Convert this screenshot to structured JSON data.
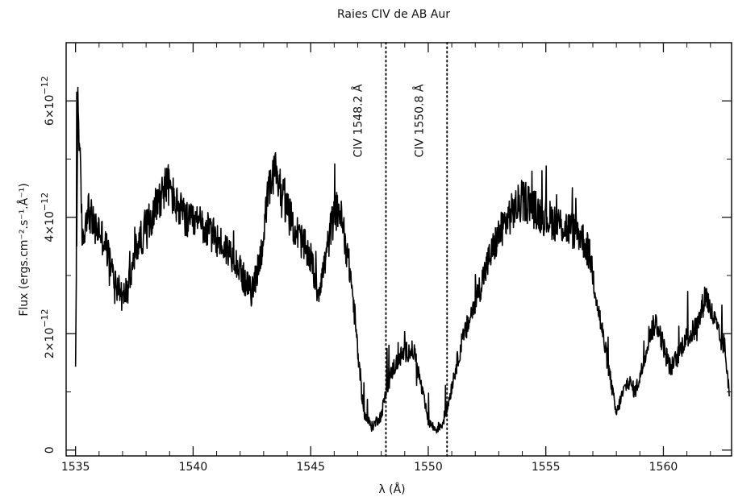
{
  "chart_data": {
    "type": "line",
    "title": "Raies CIV de AB Aur",
    "xlabel": "λ (Å)",
    "ylabel": "Flux (ergs.cm⁻².s⁻¹.Å⁻¹)",
    "xlim": [
      1534.6,
      1562.9
    ],
    "ylim": [
      -1e-13,
      7e-12
    ],
    "x_ticks": [
      1535,
      1540,
      1545,
      1550,
      1555,
      1560
    ],
    "x_tick_labels": [
      "1535",
      "1540",
      "1545",
      "1550",
      "1555",
      "1560"
    ],
    "y_ticks": [
      0,
      2e-12,
      4e-12,
      6e-12
    ],
    "y_tick_labels": [
      {
        "base": "0",
        "exp": ""
      },
      {
        "base": "2×10",
        "exp": "−12"
      },
      {
        "base": "4×10",
        "exp": "−12"
      },
      {
        "base": "6×10",
        "exp": "−12"
      }
    ],
    "grid": false,
    "series": [
      {
        "units": "ergs.cm-2.s-1.A-1 (x 1e-12)",
        "x": [
          1535.0,
          1535.1,
          1535.3,
          1535.5,
          1535.8,
          1536.0,
          1536.3,
          1536.6,
          1536.8,
          1537.0,
          1537.3,
          1537.6,
          1538.0,
          1538.5,
          1538.9,
          1539.3,
          1539.8,
          1540.3,
          1540.8,
          1541.3,
          1541.8,
          1542.2,
          1542.5,
          1542.9,
          1543.2,
          1543.5,
          1543.8,
          1544.2,
          1544.6,
          1545.0,
          1545.3,
          1545.6,
          1545.9,
          1546.2,
          1546.5,
          1546.7,
          1546.9,
          1547.1,
          1547.3,
          1547.6,
          1548.0,
          1548.2,
          1548.5,
          1548.8,
          1549.1,
          1549.4,
          1549.7,
          1550.0,
          1550.3,
          1550.6,
          1550.8,
          1551.1,
          1551.4,
          1551.8,
          1552.2,
          1552.6,
          1553.0,
          1553.4,
          1553.8,
          1554.2,
          1554.6,
          1555.0,
          1555.5,
          1556.0,
          1556.5,
          1556.9,
          1557.2,
          1557.5,
          1557.8,
          1558.0,
          1558.2,
          1558.5,
          1558.8,
          1559.1,
          1559.4,
          1559.7,
          1560.0,
          1560.3,
          1560.6,
          1560.9,
          1561.2,
          1561.5,
          1561.8,
          1562.0,
          1562.2,
          1562.4,
          1562.6,
          1562.8
        ],
        "y": [
          1.3,
          6.1,
          3.5,
          4.2,
          3.8,
          3.8,
          3.5,
          3.0,
          2.8,
          2.6,
          2.9,
          3.5,
          3.8,
          4.3,
          4.6,
          4.2,
          3.9,
          3.9,
          3.7,
          3.5,
          3.3,
          2.9,
          2.7,
          3.4,
          4.4,
          4.8,
          4.4,
          3.9,
          3.6,
          3.3,
          2.7,
          3.2,
          3.9,
          4.2,
          3.5,
          3.0,
          2.2,
          1.2,
          0.6,
          0.4,
          0.6,
          1.0,
          1.4,
          1.6,
          1.7,
          1.7,
          1.1,
          0.5,
          0.35,
          0.45,
          0.7,
          1.3,
          1.8,
          2.3,
          2.8,
          3.3,
          3.7,
          4.0,
          4.2,
          4.3,
          4.1,
          4.0,
          3.9,
          3.8,
          3.7,
          3.3,
          2.5,
          1.8,
          1.1,
          0.6,
          0.9,
          1.2,
          1.0,
          1.4,
          2.0,
          2.2,
          1.8,
          1.4,
          1.6,
          1.9,
          2.0,
          2.2,
          2.7,
          2.4,
          2.2,
          1.9,
          1.8,
          1.0
        ]
      }
    ],
    "annotations": [
      {
        "text": "CIV 1548.2 Å",
        "x": 1548.2,
        "style": "dotted"
      },
      {
        "text": "CIV 1550.8 Å",
        "x": 1550.8,
        "style": "dotted"
      }
    ]
  }
}
